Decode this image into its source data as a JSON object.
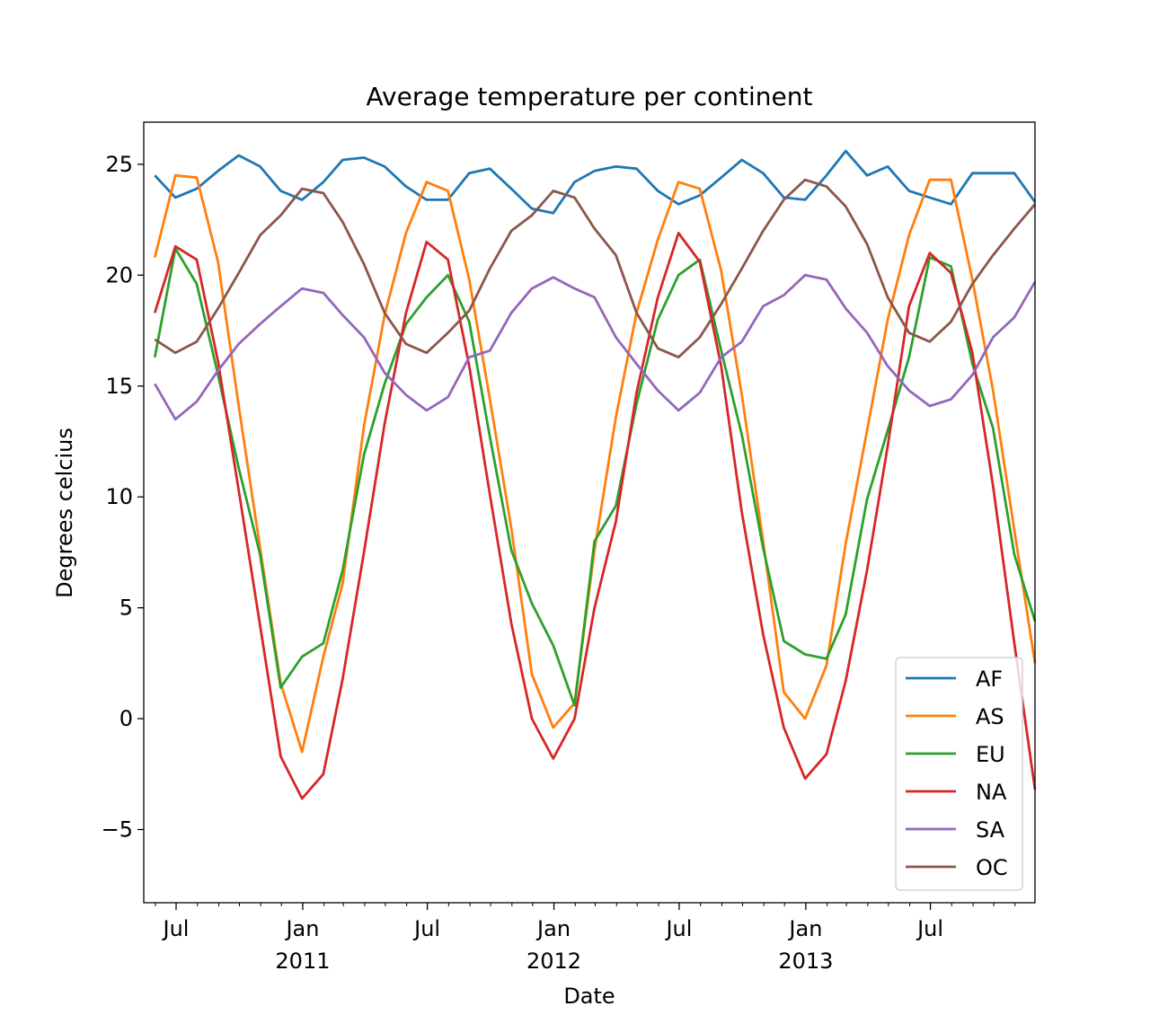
{
  "chart_data": {
    "type": "line",
    "title": "Average temperature per continent",
    "xlabel": "Date",
    "ylabel": "Degrees celcius",
    "ylim": [
      -8.3,
      26.9
    ],
    "xlim": [
      "2010-05-15",
      "2013-11-30"
    ],
    "grid": false,
    "legend_position": "lower right",
    "y_ticks": [
      -5,
      0,
      5,
      10,
      15,
      20,
      25
    ],
    "y_tick_labels": [
      "−5",
      "0",
      "5",
      "10",
      "15",
      "20",
      "25"
    ],
    "x_ticks": [
      {
        "date": "2010-07-01",
        "label": "Jul"
      },
      {
        "date": "2011-01-01",
        "label": "Jan",
        "year": "2011"
      },
      {
        "date": "2011-07-01",
        "label": "Jul"
      },
      {
        "date": "2012-01-01",
        "label": "Jan",
        "year": "2012"
      },
      {
        "date": "2012-07-01",
        "label": "Jul"
      },
      {
        "date": "2013-01-01",
        "label": "Jan",
        "year": "2013"
      },
      {
        "date": "2013-07-01",
        "label": "Jul"
      }
    ],
    "x": [
      "2010-05-31",
      "2010-06-30",
      "2010-07-31",
      "2010-08-31",
      "2010-09-30",
      "2010-10-31",
      "2010-11-30",
      "2010-12-31",
      "2011-01-31",
      "2011-02-28",
      "2011-03-31",
      "2011-04-30",
      "2011-05-31",
      "2011-06-30",
      "2011-07-31",
      "2011-08-31",
      "2011-09-30",
      "2011-10-31",
      "2011-11-30",
      "2011-12-31",
      "2012-01-31",
      "2012-02-29",
      "2012-03-31",
      "2012-04-30",
      "2012-05-31",
      "2012-06-30",
      "2012-07-31",
      "2012-08-31",
      "2012-09-30",
      "2012-10-31",
      "2012-11-30",
      "2012-12-31",
      "2013-01-31",
      "2013-02-28",
      "2013-03-31",
      "2013-04-30",
      "2013-05-31",
      "2013-06-30",
      "2013-07-31",
      "2013-08-31",
      "2013-09-30",
      "2013-10-31",
      "2013-11-30"
    ],
    "series": [
      {
        "name": "AF",
        "color": "#1f77b4",
        "values": [
          24.5,
          23.5,
          23.9,
          24.7,
          25.4,
          24.9,
          23.8,
          23.4,
          24.2,
          25.2,
          25.3,
          24.9,
          24.0,
          23.4,
          23.4,
          24.6,
          24.8,
          23.9,
          23.0,
          22.8,
          24.2,
          24.7,
          24.9,
          24.8,
          23.8,
          23.2,
          23.6,
          24.4,
          25.2,
          24.6,
          23.5,
          23.4,
          24.5,
          25.6,
          24.5,
          24.9,
          23.8,
          23.5,
          23.2,
          24.6,
          24.6,
          24.6,
          23.3
        ]
      },
      {
        "name": "AS",
        "color": "#ff7f0e",
        "values": [
          20.8,
          24.5,
          24.4,
          20.6,
          14.1,
          7.7,
          1.6,
          -1.5,
          2.8,
          6.1,
          13.2,
          18.2,
          21.9,
          24.2,
          23.8,
          19.8,
          14.4,
          8.6,
          2.0,
          -0.4,
          0.7,
          7.6,
          13.6,
          18.3,
          21.6,
          24.2,
          23.9,
          20.2,
          14.6,
          8.0,
          1.2,
          0.0,
          2.4,
          7.9,
          13.0,
          18.0,
          21.8,
          24.3,
          24.3,
          19.8,
          14.8,
          8.5,
          2.5
        ]
      },
      {
        "name": "EU",
        "color": "#2ca02c",
        "values": [
          16.3,
          21.2,
          19.6,
          15.5,
          11.3,
          7.4,
          1.4,
          2.8,
          3.4,
          6.7,
          11.9,
          15.1,
          17.8,
          19.0,
          20.0,
          17.9,
          12.7,
          7.6,
          5.2,
          3.3,
          0.6,
          8.0,
          9.6,
          14.2,
          18.0,
          20.0,
          20.7,
          16.6,
          12.8,
          7.7,
          3.5,
          2.9,
          2.7,
          4.7,
          9.9,
          13.0,
          16.3,
          20.8,
          20.4,
          16.0,
          13.1,
          7.4,
          4.4
        ]
      },
      {
        "name": "NA",
        "color": "#d62728",
        "values": [
          18.3,
          21.3,
          20.7,
          16.1,
          10.3,
          4.2,
          -1.7,
          -3.6,
          -2.5,
          1.8,
          7.5,
          13.3,
          18.3,
          21.5,
          20.7,
          15.9,
          10.1,
          4.3,
          0.0,
          -1.8,
          0.0,
          5.0,
          8.9,
          14.7,
          19.0,
          21.9,
          20.6,
          15.9,
          9.3,
          3.8,
          -0.4,
          -2.7,
          -1.6,
          1.7,
          6.7,
          12.3,
          18.6,
          21.0,
          20.1,
          16.5,
          10.5,
          3.4,
          -3.2
        ]
      },
      {
        "name": "SA",
        "color": "#9467bd",
        "values": [
          15.1,
          13.5,
          14.3,
          15.7,
          16.9,
          17.8,
          18.6,
          19.4,
          19.2,
          18.2,
          17.2,
          15.6,
          14.6,
          13.9,
          14.5,
          16.3,
          16.6,
          18.3,
          19.4,
          19.9,
          19.4,
          19.0,
          17.2,
          16.0,
          14.8,
          13.9,
          14.7,
          16.3,
          17.0,
          18.6,
          19.1,
          20.0,
          19.8,
          18.5,
          17.4,
          15.9,
          14.8,
          14.1,
          14.4,
          15.5,
          17.2,
          18.1,
          19.7
        ]
      },
      {
        "name": "OC",
        "color": "#8c564b",
        "values": [
          17.1,
          16.5,
          17.0,
          18.5,
          20.1,
          21.8,
          22.7,
          23.9,
          23.7,
          22.4,
          20.5,
          18.3,
          16.9,
          16.5,
          17.4,
          18.4,
          20.3,
          22.0,
          22.7,
          23.8,
          23.5,
          22.1,
          20.9,
          18.3,
          16.7,
          16.3,
          17.2,
          18.7,
          20.3,
          22.0,
          23.4,
          24.3,
          24.0,
          23.1,
          21.4,
          19.0,
          17.4,
          17.0,
          17.9,
          19.6,
          20.9,
          22.1,
          23.2
        ]
      }
    ]
  }
}
